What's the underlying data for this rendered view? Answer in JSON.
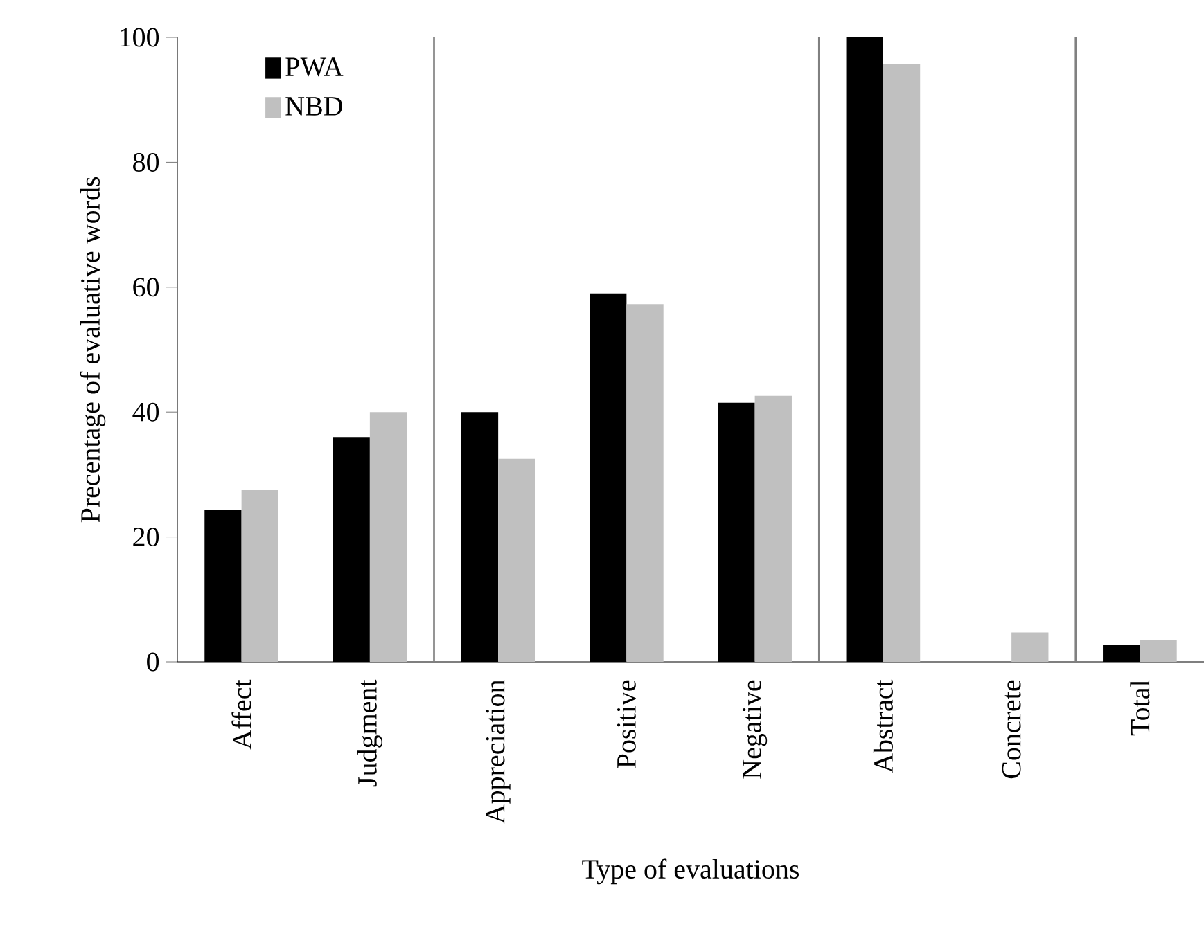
{
  "chart_data": {
    "type": "bar",
    "xlabel": "Type of evaluations",
    "ylabel": "Precentage of evaluative words",
    "categories": [
      "Affect",
      "Judgment",
      "Appreciation",
      "Positive",
      "Negative",
      "Abstract",
      "Concrete",
      "Total"
    ],
    "series": [
      {
        "name": "PWA",
        "color": "#000000",
        "values": [
          24.4,
          36,
          40,
          59,
          41.5,
          100,
          0,
          2.7
        ]
      },
      {
        "name": "NBD",
        "color": "#c0c0c0",
        "values": [
          27.5,
          40,
          32.5,
          57.3,
          42.6,
          95.7,
          4.7,
          3.5
        ]
      }
    ],
    "ylim": [
      0,
      100
    ],
    "yticks": [
      0,
      20,
      40,
      60,
      80,
      100
    ],
    "grid": false,
    "legend": "top left"
  }
}
